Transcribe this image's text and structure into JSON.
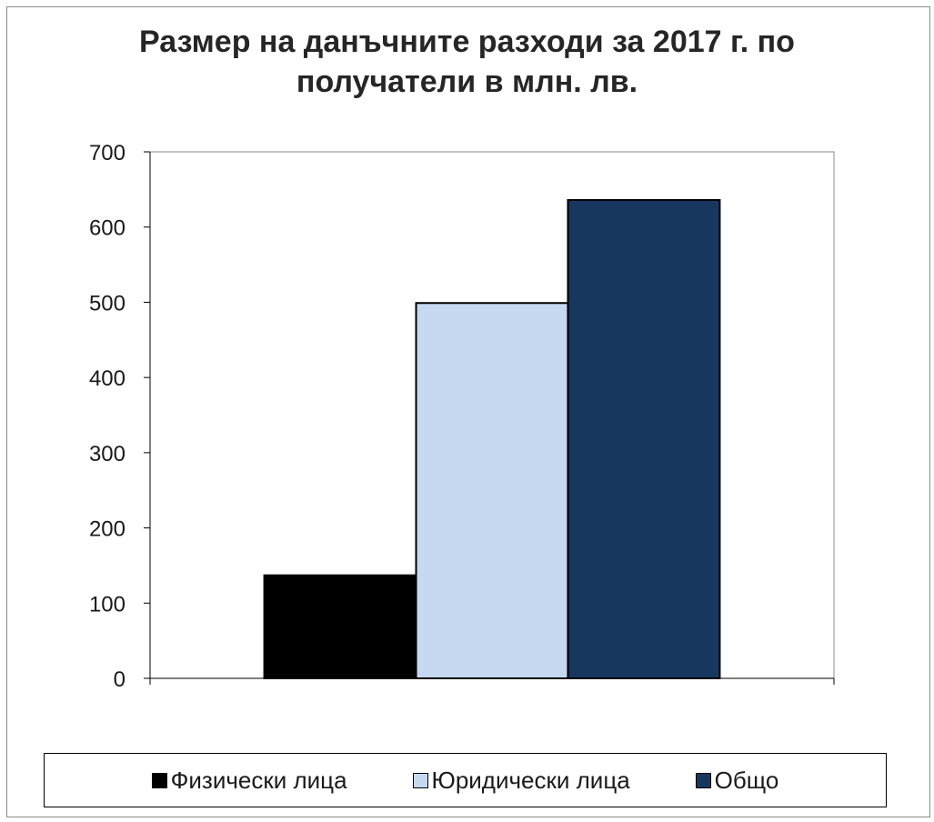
{
  "chart_data": {
    "type": "bar",
    "title_lines": [
      "Размер на данъчните разходи за 2017 г. по",
      "получатели в млн. лв."
    ],
    "categories": [
      ""
    ],
    "series": [
      {
        "name": "Физически лица",
        "values": [
          137
        ],
        "color": "#000000"
      },
      {
        "name": "Юридически лица",
        "values": [
          499
        ],
        "color": "#c6d9f1"
      },
      {
        "name": "Общо",
        "values": [
          636
        ],
        "color": "#17375e"
      }
    ],
    "yticks": [
      "0",
      "100",
      "200",
      "300",
      "400",
      "500",
      "600",
      "700"
    ],
    "ylim": [
      0,
      700
    ],
    "xlabel": "",
    "ylabel": "",
    "grid": false,
    "legend_position": "bottom"
  }
}
